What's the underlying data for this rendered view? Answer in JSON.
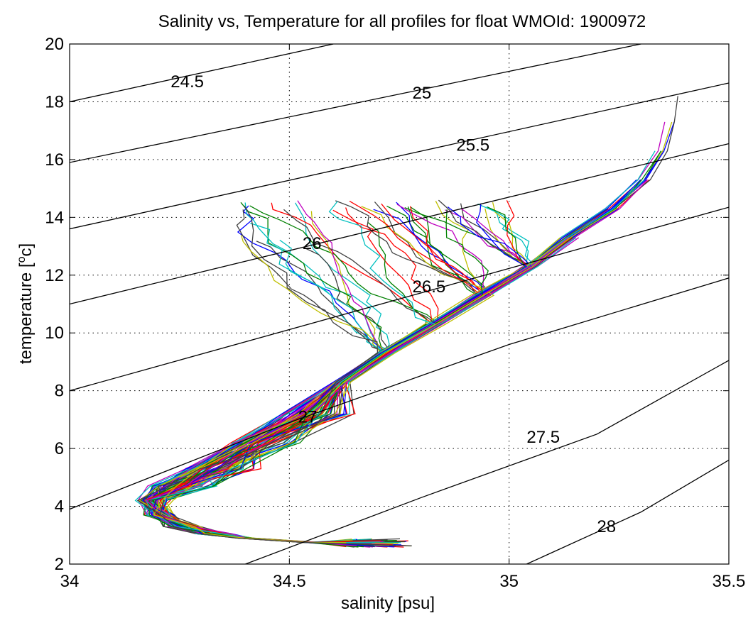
{
  "chart_data": {
    "type": "line",
    "title": "Salinity vs, Temperature for all profiles for float WMOId: 1900972",
    "xlabel": "salinity [psu]",
    "ylabel_main": "temperature [",
    "ylabel_sup": "o",
    "ylabel_end": "c]",
    "xlim": [
      34,
      35.5
    ],
    "ylim": [
      2,
      20
    ],
    "grid": true,
    "xticks": [
      34,
      34.5,
      35,
      35.5
    ],
    "xtick_labels": [
      "34",
      "34.5",
      "35",
      "35.5"
    ],
    "yticks": [
      2,
      4,
      6,
      8,
      10,
      12,
      14,
      16,
      18,
      20
    ],
    "ytick_labels": [
      "2",
      "4",
      "6",
      "8",
      "10",
      "12",
      "14",
      "16",
      "18",
      "20"
    ],
    "isopycnals": [
      {
        "label": "24.5",
        "points": [
          [
            34.0,
            18.0
          ],
          [
            34.6,
            20.0
          ]
        ],
        "label_at": [
          34.23,
          18.7
        ]
      },
      {
        "label": "25",
        "points": [
          [
            34.0,
            15.9
          ],
          [
            35.3,
            20.0
          ]
        ],
        "label_at": [
          34.78,
          18.3
        ]
      },
      {
        "label": "25.5",
        "points": [
          [
            34.0,
            13.6
          ],
          [
            35.5,
            18.65
          ]
        ],
        "label_at": [
          34.88,
          16.5
        ]
      },
      {
        "label": "26",
        "points": [
          [
            34.0,
            11.0
          ],
          [
            35.5,
            16.55
          ]
        ],
        "label_at": [
          34.53,
          13.1
        ]
      },
      {
        "label": "26.5",
        "points": [
          [
            34.0,
            8.0
          ],
          [
            35.5,
            14.35
          ]
        ],
        "label_at": [
          34.78,
          11.6
        ]
      },
      {
        "label": "27",
        "points": [
          [
            34.0,
            3.9
          ],
          [
            34.5,
            6.9
          ],
          [
            35.0,
            9.6
          ],
          [
            35.5,
            11.9
          ]
        ],
        "label_at": [
          34.52,
          7.1
        ]
      },
      {
        "label": "27.5",
        "points": [
          [
            34.4,
            2.0
          ],
          [
            34.8,
            4.3
          ],
          [
            35.2,
            6.5
          ],
          [
            35.5,
            9.05
          ]
        ],
        "label_at": [
          35.04,
          6.4
        ]
      },
      {
        "label": "28",
        "points": [
          [
            35.04,
            2.0
          ],
          [
            35.3,
            3.8
          ],
          [
            35.5,
            5.6
          ]
        ],
        "label_at": [
          35.2,
          3.3
        ]
      }
    ],
    "series_colors": [
      "#0000ff",
      "#ff0000",
      "#008000",
      "#00bfbf",
      "#bf00bf",
      "#bfbf00",
      "#404040"
    ],
    "profile_count": 84
  }
}
